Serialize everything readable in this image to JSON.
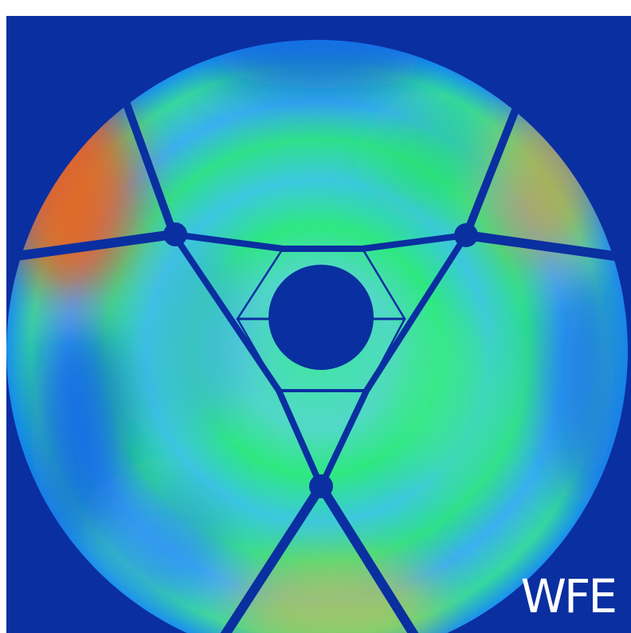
{
  "label": {
    "text": "WFE"
  }
}
